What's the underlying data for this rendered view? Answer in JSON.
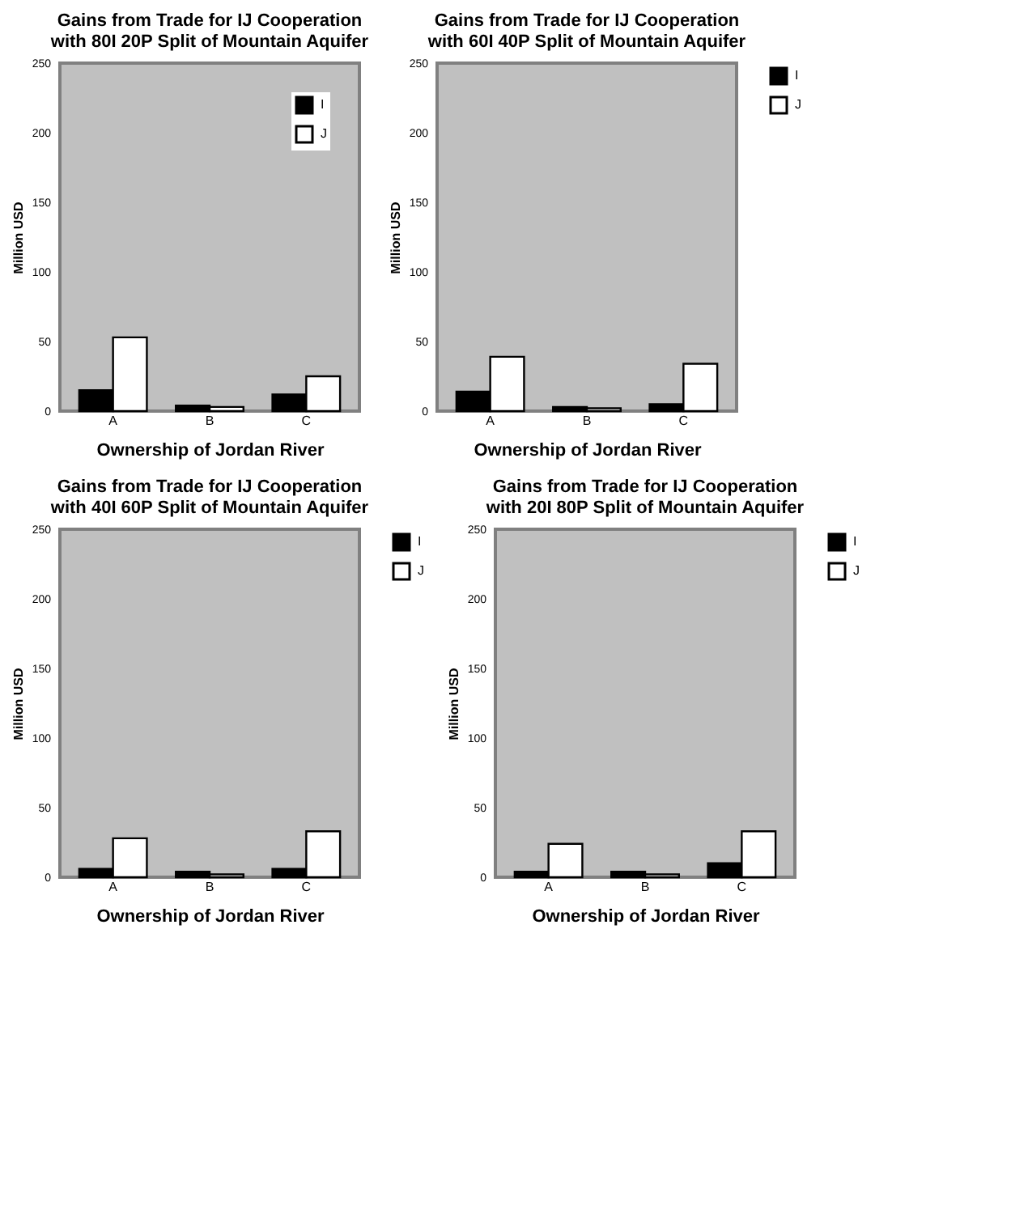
{
  "chart_data": [
    {
      "type": "bar",
      "title": [
        "Gains from Trade for IJ Cooperation",
        "with 80I 20P Split of Mountain Aquifer"
      ],
      "xlabel": "Ownership of Jordan River",
      "ylabel": "Million USD",
      "categories": [
        "A",
        "B",
        "C"
      ],
      "ylim": [
        0,
        250
      ],
      "yticks": [
        0,
        50,
        100,
        150,
        200,
        250
      ],
      "grid": false,
      "legend": "top right",
      "series": [
        {
          "name": "I",
          "color": "#000000",
          "values": [
            15,
            4,
            12
          ]
        },
        {
          "name": "J",
          "color": "#ffffff",
          "values": [
            53,
            3,
            25
          ]
        }
      ]
    },
    {
      "type": "bar",
      "title": [
        "Gains from Trade for IJ Cooperation",
        "with 60I 40P Split of Mountain Aquifer"
      ],
      "xlabel": "Ownership of Jordan River",
      "ylabel": "Million USD",
      "categories": [
        "A",
        "B",
        "C"
      ],
      "ylim": [
        0,
        250
      ],
      "yticks": [
        0,
        50,
        100,
        150,
        200,
        250
      ],
      "grid": false,
      "legend": "right",
      "series": [
        {
          "name": "I",
          "color": "#000000",
          "values": [
            14,
            3,
            5
          ]
        },
        {
          "name": "J",
          "color": "#ffffff",
          "values": [
            39,
            2,
            34
          ]
        }
      ]
    },
    {
      "type": "bar",
      "title": [
        "Gains from Trade for IJ Cooperation",
        "with 40I 60P Split of Mountain Aquifer"
      ],
      "xlabel": "Ownership of Jordan River",
      "ylabel": "Million USD",
      "categories": [
        "A",
        "B",
        "C"
      ],
      "ylim": [
        0,
        250
      ],
      "yticks": [
        0,
        50,
        100,
        150,
        200,
        250
      ],
      "grid": false,
      "legend": "right",
      "series": [
        {
          "name": "I",
          "color": "#000000",
          "values": [
            6,
            4,
            6
          ]
        },
        {
          "name": "J",
          "color": "#ffffff",
          "values": [
            28,
            2,
            33
          ]
        }
      ]
    },
    {
      "type": "bar",
      "title": [
        "Gains from Trade for IJ Cooperation",
        "with 20I 80P Split of Mountain Aquifer"
      ],
      "xlabel": "Ownership of Jordan River",
      "ylabel": "Million USD",
      "categories": [
        "A",
        "B",
        "C"
      ],
      "ylim": [
        0,
        250
      ],
      "yticks": [
        0,
        50,
        100,
        150,
        200,
        250
      ],
      "grid": false,
      "legend": "right",
      "series": [
        {
          "name": "I",
          "color": "#000000",
          "values": [
            4,
            4,
            10
          ]
        },
        {
          "name": "J",
          "color": "#ffffff",
          "values": [
            24,
            2,
            33
          ]
        }
      ]
    }
  ]
}
